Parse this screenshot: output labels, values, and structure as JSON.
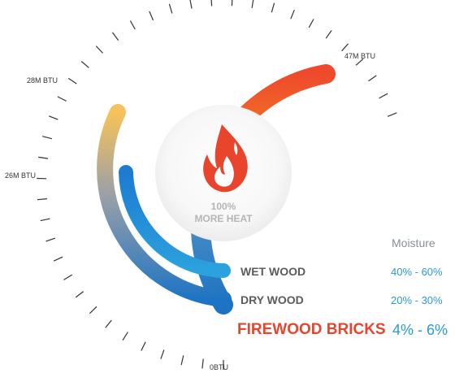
{
  "chart_data": {
    "type": "radial-bar",
    "scale_ticks": [
      "0BTU",
      "26M BTU",
      "28M BTU",
      "47M BTU"
    ],
    "center": {
      "line1": "100%",
      "line2": "MORE HEAT",
      "icon": "flame-icon"
    },
    "moisture_header": "Moisture",
    "series": [
      {
        "name": "WET WOOD",
        "moisture": "40% - 60%",
        "color_start": "#f7c65a",
        "color_end": "#2a9ad6"
      },
      {
        "name": "DRY WOOD",
        "moisture": "20% - 30%",
        "color_start": "#2a9ad6",
        "color_end": "#2a9ad6"
      },
      {
        "name": "FIREWOOD BRICKS",
        "moisture": "4% - 6%",
        "color_start": "#e8452c",
        "color_end": "#1a6fbd"
      }
    ],
    "colors": {
      "highlight": "#e8452c",
      "accent": "#2a9ad6",
      "tick": "#333333"
    }
  }
}
